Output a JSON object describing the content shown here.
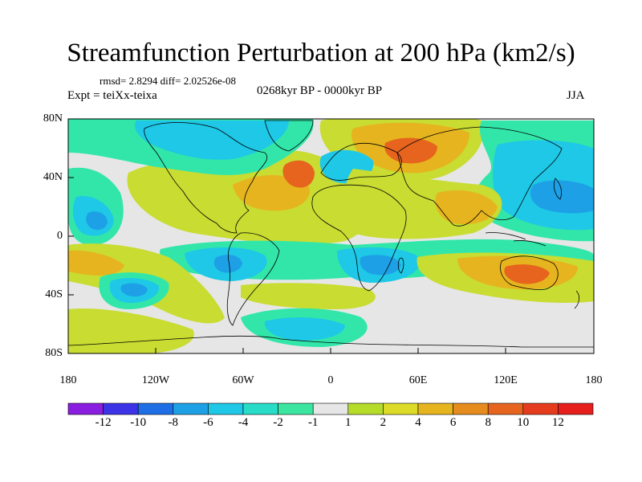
{
  "header": {
    "title": "Streamfunction Perturbation at 200 hPa (km2/s)",
    "stats": "rmsd= 2.8294 diff= 2.02526e-08",
    "experiment": "Expt = teiXx-teixa",
    "period": "0268kyr BP - 0000kyr BP",
    "season": "JJA"
  },
  "axes": {
    "lat_labels": [
      "80N",
      "40N",
      "0",
      "40S",
      "80S"
    ],
    "lon_labels": [
      "180",
      "120W",
      "60W",
      "0",
      "60E",
      "120E",
      "180"
    ]
  },
  "colorbar": {
    "labels": [
      "-12",
      "-10",
      "-8",
      "-6",
      "-4",
      "-2",
      "-1",
      "1",
      "2",
      "4",
      "6",
      "8",
      "10",
      "12"
    ],
    "colors": [
      "#8a1ee0",
      "#3c32e6",
      "#1e6ee6",
      "#1ea0e6",
      "#1ec8e6",
      "#28dcc8",
      "#3ce6a0",
      "#e6e6e6",
      "#b4dc28",
      "#dcdc28",
      "#e6b41e",
      "#e68c1e",
      "#e6641e",
      "#e63c1e",
      "#e61e1e"
    ]
  },
  "palette": {
    "ocean_background": "#e6e6e6",
    "positive_weak": "#c8dc32",
    "positive_mid": "#e6b41e",
    "positive_strong": "#e6641e",
    "negative_weak": "#32e6aa",
    "negative_mid": "#1ec8e6",
    "negative_strong": "#1ea0e6"
  }
}
